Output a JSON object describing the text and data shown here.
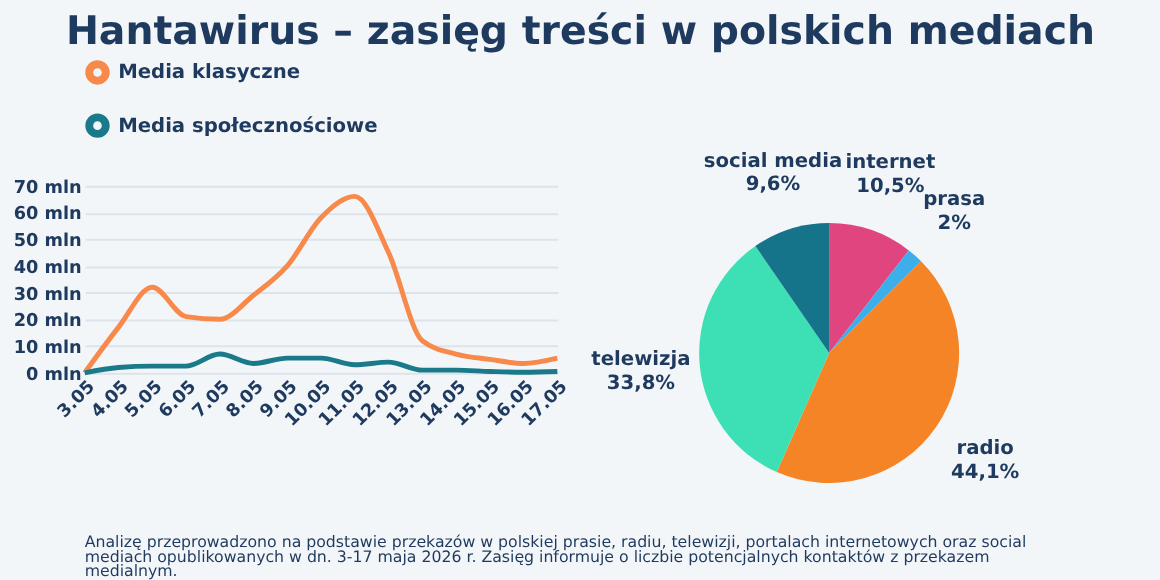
{
  "chart_data": [
    {
      "type": "line",
      "title": "Hantawirus – zasięg treści w polskich mediach",
      "categories": [
        "3.05",
        "4.05",
        "5.05",
        "6.05",
        "7.05",
        "8.05",
        "9.05",
        "10.05",
        "11.05",
        "12.05",
        "13.05",
        "14.05",
        "15.05",
        "16.05",
        "17.05"
      ],
      "series": [
        {
          "name": "Media klasyczne",
          "color": "#f7894a",
          "values": [
            0,
            17,
            32,
            21,
            20,
            29,
            40,
            58,
            66,
            45,
            12,
            7,
            5,
            3.5,
            5.5
          ]
        },
        {
          "name": "Media społecznościowe",
          "color": "#1a7a8a",
          "values": [
            0,
            2,
            2.5,
            2.5,
            7,
            3.5,
            5.5,
            5.5,
            3,
            4,
            1,
            1,
            0.5,
            0.2,
            0.5
          ]
        }
      ],
      "ylim": [
        0,
        70
      ],
      "yticks": [
        {
          "value": 0,
          "label": "0 mln"
        },
        {
          "value": 10,
          "label": "10 mln"
        },
        {
          "value": 20,
          "label": "20 mln"
        },
        {
          "value": 30,
          "label": "30 mln"
        },
        {
          "value": 40,
          "label": "40 mln"
        },
        {
          "value": 50,
          "label": "50 mln"
        },
        {
          "value": 60,
          "label": "60 mln"
        },
        {
          "value": 70,
          "label": "70 mln"
        }
      ],
      "grid": "y",
      "legend": "top",
      "marker": "none",
      "line_style": "solid",
      "annotations": [
        "Analizę przeprowadzono na podstawie przekazów w polskiej prasie, radiu, telewizji, portalach internetowych oraz social mediach opublikowanych w dn. 3-17 maja 2026 r. Zasięg informuje o liczbie potencjalnych kontaktów z przekazem medialnym."
      ]
    },
    {
      "type": "pie",
      "categories": [
        "internet",
        "prasa",
        "radio",
        "telewizja",
        "social media"
      ],
      "values": [
        10.5,
        2,
        44.1,
        33.8,
        9.6
      ],
      "value_labels": [
        "10,5%",
        "2%",
        "44,1%",
        "33,8%",
        "9,6%"
      ],
      "colors": [
        "#e0457f",
        "#3daee9",
        "#f58426",
        "#3de0b4",
        "#16748a"
      ]
    }
  ]
}
